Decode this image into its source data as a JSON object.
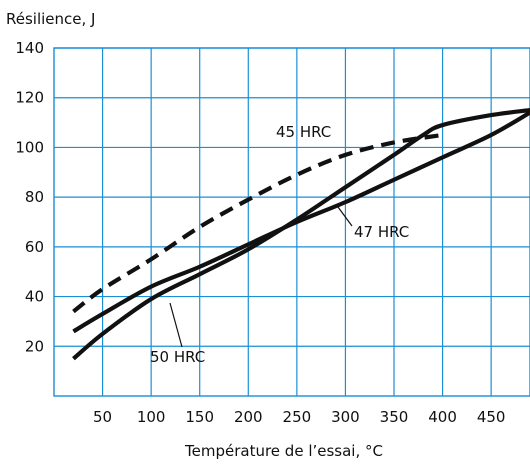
{
  "chart_data": {
    "type": "line",
    "title": "",
    "xlabel": "Température de l’essai, °C",
    "ylabel": "Résilience, J",
    "xlim": [
      0,
      490
    ],
    "ylim": [
      0,
      140
    ],
    "x_ticks": [
      50,
      100,
      150,
      200,
      250,
      300,
      350,
      400,
      450
    ],
    "y_ticks": [
      20,
      40,
      60,
      80,
      100,
      120,
      140
    ],
    "grid": true,
    "grid_color": "#1a8fd6",
    "series": [
      {
        "name": "45 HRC",
        "style": "dashed",
        "x": [
          20,
          50,
          100,
          150,
          200,
          250,
          300,
          350,
          400
        ],
        "y": [
          34,
          43,
          55,
          68,
          79,
          89,
          97,
          102,
          105
        ]
      },
      {
        "name": "47 HRC",
        "style": "solid",
        "x": [
          20,
          50,
          100,
          150,
          200,
          250,
          300,
          350,
          400,
          450,
          490
        ],
        "y": [
          26,
          33,
          44,
          52,
          61,
          70,
          78,
          87,
          96,
          105,
          114
        ]
      },
      {
        "name": "50 HRC",
        "style": "solid",
        "x": [
          20,
          50,
          100,
          150,
          200,
          250,
          300,
          350,
          380,
          400,
          450,
          490
        ],
        "y": [
          15,
          25,
          39,
          49,
          59,
          71,
          84,
          97,
          105,
          109,
          113,
          115
        ]
      }
    ]
  }
}
